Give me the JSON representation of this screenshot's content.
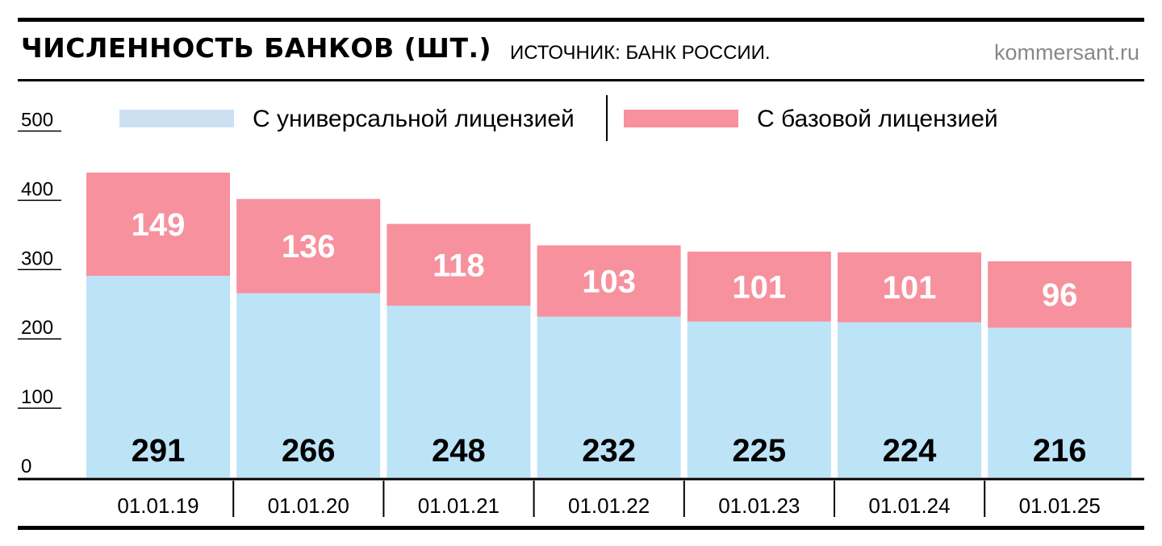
{
  "header": {
    "title": "ЧИСЛЕННОСТЬ БАНКОВ (ШТ.)",
    "source": "ИСТОЧНИК: БАНК РОССИИ.",
    "site": "kommersant.ru"
  },
  "colors": {
    "universal": "#bde3f7",
    "universal_legend": "#cce0f2",
    "basic": "#f7919e",
    "value_top": "#ffffff",
    "value_bottom": "#000000"
  },
  "chart_data": {
    "type": "bar",
    "stacked": true,
    "categories": [
      "01.01.19",
      "01.01.20",
      "01.01.21",
      "01.01.22",
      "01.01.23",
      "01.01.24",
      "01.01.25"
    ],
    "series": [
      {
        "name": "С универсальной лицензией",
        "values": [
          291,
          266,
          248,
          232,
          225,
          224,
          216
        ]
      },
      {
        "name": "С базовой лицензией",
        "values": [
          149,
          136,
          118,
          103,
          101,
          101,
          96
        ]
      }
    ],
    "yticks": [
      "0",
      "100",
      "200",
      "300",
      "400",
      "500"
    ],
    "ylim": [
      0,
      500
    ],
    "legend_position": "top",
    "grid": false
  }
}
